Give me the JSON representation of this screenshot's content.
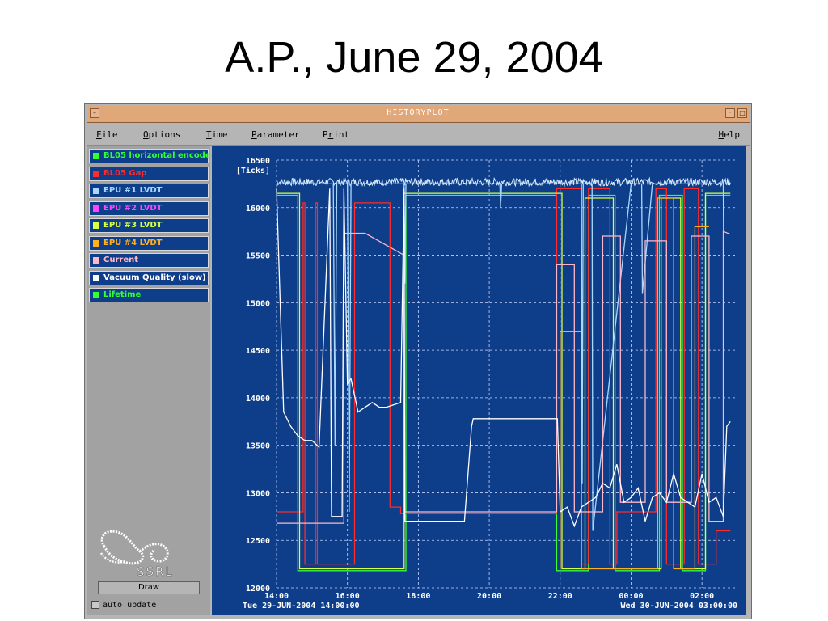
{
  "slide_title": "A.P., June 29, 2004",
  "window": {
    "title": "HISTORYPLOT",
    "menu": [
      {
        "hotkey": "F",
        "rest": "ile"
      },
      {
        "hotkey": "O",
        "rest": "ptions"
      },
      {
        "hotkey": "T",
        "rest": "ime"
      },
      {
        "hotkey": "P",
        "rest": "arameter"
      },
      {
        "pre": "P",
        "hotkey": "r",
        "rest": "int"
      }
    ],
    "help": {
      "hotkey": "H",
      "rest": "elp"
    }
  },
  "legend": [
    {
      "label": "BL05 horizontal encoder",
      "color": "#33ff33"
    },
    {
      "label": "BL05 Gap",
      "color": "#ff2a2a"
    },
    {
      "label": "EPU #1 LVDT",
      "color": "#a8d8ff"
    },
    {
      "label": "EPU #2 LVDT",
      "color": "#ff44ff"
    },
    {
      "label": "EPU #3 LVDT",
      "color": "#d8ff44"
    },
    {
      "label": "EPU #4 LVDT",
      "color": "#ffb020"
    },
    {
      "label": "Current",
      "color": "#ffb6c8"
    },
    {
      "label": "Vacuum Quality (slow)",
      "color": "#ffffff"
    },
    {
      "label": "Lifetime",
      "color": "#33ff33"
    }
  ],
  "draw_button": "Draw",
  "logo_text": "SSRL",
  "auto_update": "auto update",
  "chart_data": {
    "type": "line",
    "ylabel": "[Ticks]",
    "ylim": [
      12000,
      16500
    ],
    "yticks": [
      16500,
      16000,
      15500,
      15000,
      14500,
      14000,
      13500,
      13000,
      12500,
      12000
    ],
    "xlim": [
      14,
      27
    ],
    "xticks": [
      "14:00",
      "16:00",
      "18:00",
      "20:00",
      "22:00",
      "00:00",
      "02:00"
    ],
    "x_start_label": "Tue 29-JUN-2004 14:00:00",
    "x_end_label": "Wed 30-JUN-2004 03:00:00",
    "grid": true,
    "series": [
      {
        "name": "BL05 horizontal encoder",
        "color": "#33ff33",
        "x": [
          14.0,
          14.6,
          14.6,
          16.1,
          16.1,
          17.65,
          17.65,
          21.9,
          21.9,
          22.0,
          22.0,
          22.2,
          22.2,
          22.8,
          22.8,
          23.55,
          23.55,
          24.8,
          24.8,
          25.45,
          25.45,
          26.1,
          26.1,
          26.8
        ],
        "y": [
          16130,
          16130,
          12180,
          12180,
          12180,
          12180,
          16130,
          16130,
          12180,
          12180,
          12180,
          12180,
          12180,
          12180,
          16130,
          16130,
          12180,
          12180,
          16130,
          16130,
          12180,
          12180,
          16130,
          16130
        ]
      },
      {
        "name": "BL05 Gap",
        "color": "#ff2a2a",
        "x": [
          14.0,
          14.75,
          14.75,
          14.8,
          14.8,
          15.1,
          15.1,
          15.15,
          15.15,
          16.2,
          16.2,
          16.4,
          16.4,
          17.2,
          17.2,
          17.5,
          17.5,
          21.9,
          21.9,
          22.6,
          22.6,
          22.8,
          22.8,
          23.4,
          23.4,
          23.6,
          23.6,
          24.7,
          24.7,
          25.0,
          25.0,
          25.5,
          25.5,
          25.9,
          25.9,
          26.4,
          26.4,
          26.8
        ],
        "y": [
          12800,
          12800,
          16050,
          16050,
          12250,
          12250,
          16050,
          16050,
          12250,
          12250,
          16050,
          16050,
          16050,
          16050,
          12850,
          12850,
          12780,
          12780,
          16200,
          16200,
          12250,
          12250,
          16200,
          16200,
          12250,
          12250,
          12800,
          12800,
          16200,
          16200,
          12250,
          12250,
          16200,
          16200,
          12250,
          12250,
          12600,
          12600
        ]
      },
      {
        "name": "EPU #3 LVDT",
        "color": "#d8ff44",
        "x": [
          14.0,
          14.65,
          14.65,
          16.05,
          16.05,
          17.6,
          17.6,
          22.05,
          22.05,
          22.7,
          22.7,
          23.5,
          23.5,
          24.85,
          24.85,
          25.4,
          25.4,
          26.1,
          26.1,
          26.8
        ],
        "y": [
          16150,
          16150,
          12200,
          12200,
          12200,
          12200,
          16150,
          16150,
          12200,
          12200,
          16100,
          16100,
          12200,
          12200,
          16100,
          16100,
          12200,
          12200,
          16150,
          16150
        ]
      },
      {
        "name": "EPU #4 LVDT",
        "color": "#ffb020",
        "x": [
          22.0,
          22.0,
          22.6,
          22.6,
          24.75,
          24.75,
          25.2,
          25.2,
          25.8,
          25.8,
          26.2
        ],
        "y": [
          12200,
          14700,
          14700,
          12200,
          12200,
          16100,
          16100,
          12200,
          12200,
          15800,
          15800
        ]
      },
      {
        "name": "EPU #1 LVDT",
        "color": "#a8d8ff",
        "x": [
          14.0,
          15.5,
          15.6,
          15.65,
          15.7,
          16.0,
          16.05,
          16.1,
          16.2,
          17.6,
          17.62,
          17.65,
          17.7,
          20.3,
          20.32,
          20.35,
          22.6,
          22.62,
          22.65,
          22.9,
          22.92,
          24.0,
          24.3,
          24.32,
          24.6,
          26.6,
          26.62
        ],
        "y": [
          16250,
          16250,
          16250,
          13500,
          16250,
          16250,
          12800,
          16250,
          16250,
          16250,
          15200,
          16250,
          16250,
          16250,
          16000,
          16250,
          16250,
          13100,
          16250,
          16250,
          12600,
          16250,
          16250,
          15100,
          16250,
          16250,
          14900
        ]
      },
      {
        "name": "Current",
        "color": "#ffb6c8",
        "x": [
          14.0,
          15.5,
          15.5,
          15.9,
          15.9,
          16.5,
          17.6,
          17.6,
          21.9,
          21.9,
          22.4,
          22.4,
          23.2,
          23.2,
          23.7,
          23.7,
          24.4,
          24.4,
          25.0,
          25.0,
          25.7,
          25.7,
          26.2,
          26.2,
          26.6,
          26.6,
          26.8
        ],
        "y": [
          12680,
          12680,
          12680,
          12680,
          15730,
          15730,
          15500,
          12800,
          12800,
          15400,
          15400,
          12800,
          12800,
          15700,
          15700,
          12900,
          12900,
          15650,
          15650,
          12900,
          12900,
          15700,
          15700,
          12700,
          12700,
          15750,
          15720
        ]
      },
      {
        "name": "Vacuum Quality (slow)",
        "color": "#ffffff",
        "x": [
          14.0,
          14.2,
          14.4,
          14.6,
          14.8,
          15.0,
          15.2,
          15.5,
          15.55,
          15.85,
          15.9,
          16.0,
          16.1,
          16.3,
          16.5,
          16.7,
          16.9,
          17.1,
          17.5,
          17.6,
          17.62,
          19.2,
          19.3,
          19.5,
          19.55,
          21.9,
          21.92,
          22.0,
          22.2,
          22.4,
          22.6,
          22.8,
          23.0,
          23.2,
          23.4,
          23.6,
          23.8,
          24.0,
          24.2,
          24.4,
          24.6,
          24.8,
          25.0,
          25.2,
          25.4,
          25.6,
          25.8,
          26.0,
          26.2,
          26.4,
          26.6,
          26.7,
          26.8
        ],
        "y": [
          16200,
          13850,
          13700,
          13600,
          13550,
          13550,
          13480,
          16200,
          12750,
          12750,
          16200,
          14150,
          14200,
          13850,
          13900,
          13950,
          13900,
          13900,
          13950,
          16200,
          12700,
          12700,
          12700,
          13700,
          13780,
          13780,
          13780,
          12800,
          12850,
          12650,
          12850,
          12900,
          12950,
          13100,
          13050,
          13300,
          12900,
          12950,
          13050,
          12700,
          12950,
          13000,
          12900,
          13200,
          12950,
          12900,
          12850,
          13200,
          12900,
          12950,
          12750,
          13700,
          13750
        ]
      }
    ],
    "noise_series": {
      "name": "Vacuum Quality (slow)",
      "color": "#d6ecff",
      "y_level": 16270,
      "amplitude": 40
    }
  }
}
